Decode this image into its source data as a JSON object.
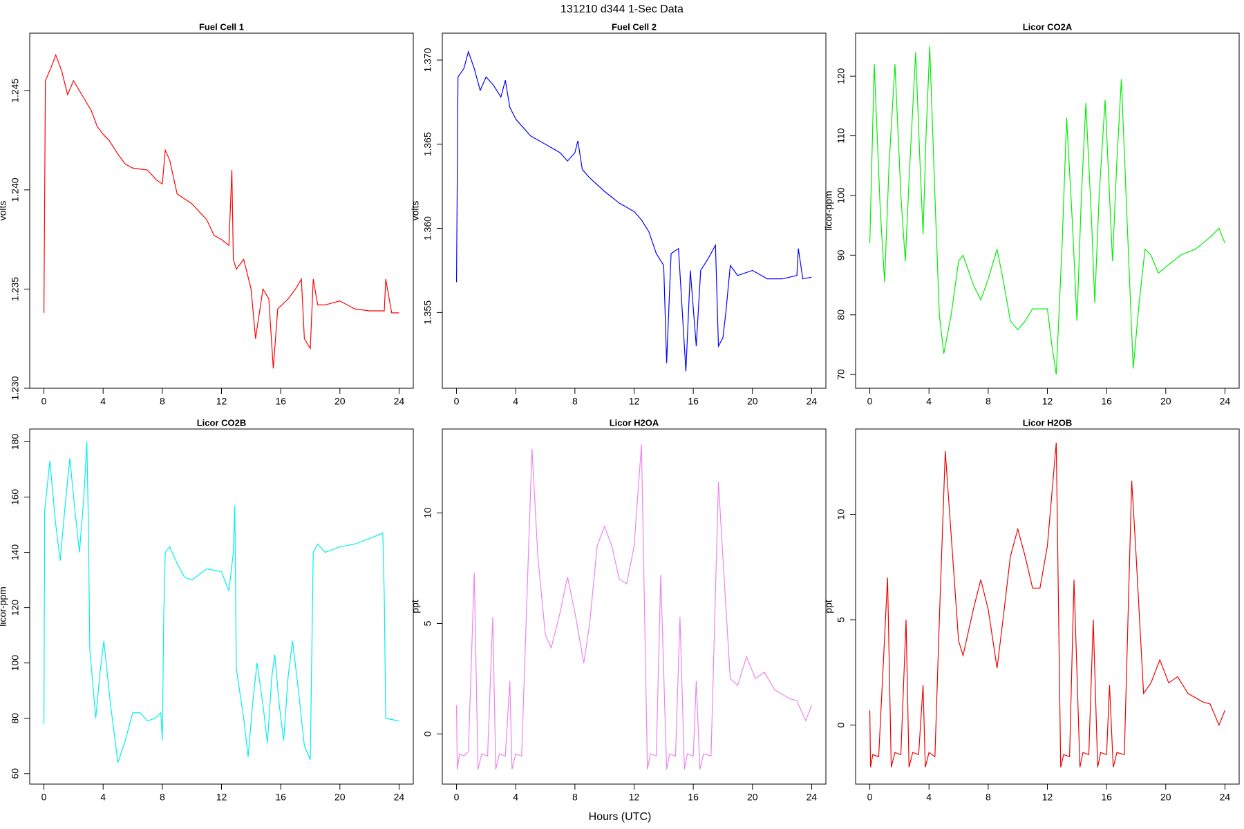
{
  "title": "131210   d344   1-Sec Data",
  "xlabel": "Hours (UTC)",
  "chart_data": [
    {
      "type": "line",
      "title": "Fuel Cell 1",
      "ylabel": "volts",
      "color": "#ff0000",
      "xlim": [
        -0.96,
        24.96
      ],
      "xticks": [
        0,
        4,
        8,
        12,
        16,
        20,
        24
      ],
      "ylim": [
        1.23,
        1.2479
      ],
      "yticks": [
        {
          "value": 1.23,
          "label": "1.230"
        },
        1.235,
        {
          "value": 1.24,
          "label": "1.240"
        },
        1.245
      ],
      "x": [
        0,
        0.1,
        0.5,
        0.8,
        1.2,
        1.6,
        2,
        2.4,
        2.8,
        3.2,
        3.6,
        4,
        4.4,
        5,
        5.5,
        6,
        7,
        7.6,
        8,
        8.2,
        8.5,
        9,
        10,
        11,
        11.5,
        12,
        12.5,
        12.7,
        12.8,
        13,
        13.5,
        14,
        14.3,
        14.8,
        15.2,
        15.5,
        15.8,
        16.5,
        17,
        17.4,
        17.6,
        18,
        18.2,
        18.5,
        19,
        20,
        21,
        22,
        23,
        23.1,
        23.5,
        24
      ],
      "values": [
        1.2338,
        1.2455,
        1.2462,
        1.2468,
        1.246,
        1.2448,
        1.2455,
        1.245,
        1.2445,
        1.244,
        1.2432,
        1.2428,
        1.2425,
        1.2418,
        1.2413,
        1.2411,
        1.241,
        1.2405,
        1.2403,
        1.242,
        1.2415,
        1.2398,
        1.2393,
        1.2385,
        1.2377,
        1.2375,
        1.2372,
        1.241,
        1.2365,
        1.236,
        1.2365,
        1.235,
        1.2325,
        1.235,
        1.2345,
        1.231,
        1.234,
        1.2345,
        1.235,
        1.2355,
        1.2325,
        1.232,
        1.2355,
        1.2342,
        1.2342,
        1.2344,
        1.234,
        1.2339,
        1.2339,
        1.2355,
        1.2338,
        1.2338
      ]
    },
    {
      "type": "line",
      "title": "Fuel Cell 2",
      "ylabel": "volts",
      "color": "#0000ff",
      "xlim": [
        -0.96,
        24.96
      ],
      "xticks": [
        0,
        4,
        8,
        12,
        16,
        20,
        24
      ],
      "ylim": [
        1.3505,
        1.3716
      ],
      "yticks": [
        1.355,
        {
          "value": 1.36,
          "label": "1.360"
        },
        1.365,
        {
          "value": 1.37,
          "label": "1.370"
        }
      ],
      "x": [
        0,
        0.1,
        0.5,
        0.8,
        1.2,
        1.6,
        2,
        2.5,
        3,
        3.3,
        3.6,
        4,
        4.5,
        5,
        6,
        7,
        7.5,
        8,
        8.2,
        8.5,
        9,
        10,
        11,
        12,
        12.5,
        13,
        13.5,
        14,
        14.2,
        14.5,
        15,
        15.5,
        15.8,
        16.2,
        16.5,
        17,
        17.5,
        17.7,
        18,
        18.2,
        18.5,
        19,
        20,
        21,
        22,
        23,
        23.1,
        23.4,
        24
      ],
      "values": [
        1.3568,
        1.369,
        1.3695,
        1.3705,
        1.3695,
        1.3682,
        1.369,
        1.3685,
        1.3678,
        1.3688,
        1.3672,
        1.3665,
        1.366,
        1.3655,
        1.365,
        1.3645,
        1.364,
        1.3645,
        1.3652,
        1.3635,
        1.363,
        1.3622,
        1.3615,
        1.361,
        1.3605,
        1.3598,
        1.3585,
        1.3578,
        1.352,
        1.3585,
        1.3588,
        1.3515,
        1.3575,
        1.353,
        1.3575,
        1.3582,
        1.359,
        1.353,
        1.3535,
        1.355,
        1.3578,
        1.3572,
        1.3575,
        1.357,
        1.357,
        1.3572,
        1.3588,
        1.357,
        1.3571
      ]
    },
    {
      "type": "line",
      "title": "Licor CO2A",
      "ylabel": "licor-ppm",
      "color": "#00ee00",
      "xlim": [
        -0.96,
        24.96
      ],
      "xticks": [
        0,
        4,
        8,
        12,
        16,
        20,
        24
      ],
      "ylim": [
        67.7,
        127.2
      ],
      "yticks": [
        70,
        80,
        90,
        100,
        110,
        120
      ],
      "x": [
        0,
        0.3,
        0.7,
        1,
        1.3,
        1.7,
        2.1,
        2.4,
        2.7,
        3.1,
        3.4,
        3.6,
        3.8,
        4.05,
        4.4,
        4.7,
        5,
        5.5,
        6,
        6.3,
        7,
        7.5,
        8,
        8.6,
        9,
        9.5,
        10,
        10.5,
        11,
        12,
        12.3,
        12.6,
        13,
        13.3,
        13.7,
        14,
        14.3,
        14.6,
        15,
        15.2,
        15.5,
        15.9,
        16.2,
        16.4,
        16.7,
        17,
        17.4,
        17.8,
        18.2,
        18.6,
        19,
        19.5,
        20,
        21,
        22,
        23,
        23.6,
        24
      ],
      "values": [
        92,
        122,
        98,
        85.5,
        105,
        122,
        100,
        89,
        105,
        124,
        105,
        93.5,
        110,
        125,
        100,
        80,
        73.5,
        80,
        89,
        90,
        85,
        82.5,
        86,
        91,
        86,
        79,
        77.5,
        79,
        81,
        81,
        75,
        70,
        92,
        113,
        95,
        79,
        100,
        115.5,
        95,
        82,
        100,
        116,
        100,
        89,
        106,
        119.5,
        95,
        71,
        82,
        91,
        90,
        87,
        88,
        90,
        91,
        93,
        94.5,
        92
      ]
    },
    {
      "type": "line",
      "title": "Licor CO2B",
      "ylabel": "licor-ppm",
      "color": "#00eeee",
      "xlim": [
        -0.96,
        24.96
      ],
      "xticks": [
        0,
        4,
        8,
        12,
        16,
        20,
        24
      ],
      "ylim": [
        56.2,
        184.6
      ],
      "yticks": [
        60,
        80,
        100,
        120,
        140,
        160,
        180
      ],
      "x": [
        0,
        0.05,
        0.4,
        0.8,
        1.1,
        1.4,
        1.75,
        2.1,
        2.4,
        2.7,
        2.9,
        3,
        3.1,
        3.5,
        3.8,
        4.05,
        4.5,
        5,
        5.5,
        6,
        6.5,
        7,
        7.5,
        7.9,
        8,
        8.1,
        8.2,
        8.5,
        9,
        9.5,
        10,
        11,
        12,
        12.5,
        12.8,
        12.9,
        13,
        13.5,
        13.8,
        14.1,
        14.4,
        14.8,
        15.1,
        15.4,
        15.6,
        15.9,
        16.2,
        16.5,
        16.8,
        17.2,
        17.6,
        18,
        18.2,
        18.5,
        19,
        20,
        21,
        22,
        22.9,
        23,
        23.1,
        24
      ],
      "values": [
        78,
        155,
        173,
        150,
        137,
        155,
        174,
        155,
        140,
        160,
        180,
        152,
        105,
        80,
        97,
        108,
        85,
        64,
        72,
        82,
        82,
        79,
        80,
        82,
        72,
        118,
        140,
        142,
        136,
        131,
        130,
        134,
        133,
        126,
        140,
        157,
        98,
        80,
        66,
        85,
        100,
        85,
        71,
        95,
        103,
        85,
        72,
        95,
        108,
        90,
        70,
        65,
        140,
        143,
        140,
        142,
        143,
        145,
        147,
        124,
        80,
        79
      ]
    },
    {
      "type": "line",
      "title": "Licor H2OA",
      "ylabel": "ppt",
      "color": "#ee82ee",
      "xlim": [
        -0.96,
        24.96
      ],
      "xticks": [
        0,
        4,
        8,
        12,
        16,
        20,
        24
      ],
      "ylim": [
        -2.27,
        13.8
      ],
      "yticks": [
        0,
        5,
        10
      ],
      "x": [
        0,
        0.05,
        0.2,
        0.5,
        0.8,
        1.2,
        1.45,
        1.7,
        2.1,
        2.45,
        2.65,
        2.9,
        3.3,
        3.6,
        3.75,
        4,
        4.4,
        4.7,
        5.1,
        5.5,
        6,
        6.4,
        7,
        7.5,
        8,
        8.6,
        9,
        9.5,
        10,
        10.5,
        11,
        11.5,
        12,
        12.5,
        12.9,
        13.1,
        13.5,
        13.8,
        14.2,
        14.4,
        14.8,
        15.1,
        15.4,
        15.6,
        16,
        16.2,
        16.45,
        16.7,
        17.2,
        17.7,
        18,
        18.5,
        19,
        19.6,
        20.2,
        20.8,
        21.5,
        22.5,
        23,
        23.6,
        24
      ],
      "values": [
        1.3,
        -1.6,
        -0.9,
        -1,
        -0.8,
        7.3,
        -1.6,
        -0.9,
        -1,
        5.3,
        -1.6,
        -0.9,
        -1,
        2.4,
        -1.6,
        -0.9,
        -1,
        5,
        12.9,
        8,
        4.5,
        3.9,
        5.5,
        7.1,
        5.5,
        3.2,
        5,
        8.5,
        9.4,
        8.5,
        7,
        6.8,
        8.5,
        13.1,
        -1.6,
        -0.9,
        -1,
        7.2,
        -1.6,
        -0.9,
        -1,
        5.3,
        -1.6,
        -0.9,
        -1,
        2.4,
        -1.6,
        -0.9,
        -1,
        11.4,
        8,
        2.5,
        2.2,
        3.5,
        2.5,
        2.8,
        2,
        1.6,
        1.5,
        0.6,
        1.3
      ]
    },
    {
      "type": "line",
      "title": "Licor H2OB",
      "ylabel": "ppt",
      "color": "#ee0000",
      "xlim": [
        -0.96,
        24.96
      ],
      "xticks": [
        0,
        4,
        8,
        12,
        16,
        20,
        24
      ],
      "ylim": [
        -2.8,
        14.05
      ],
      "yticks": [
        0,
        5,
        10
      ],
      "x": [
        0,
        0.05,
        0.2,
        0.6,
        1.2,
        1.45,
        1.7,
        2.1,
        2.45,
        2.65,
        2.9,
        3.3,
        3.6,
        3.75,
        4,
        4.4,
        4.7,
        5.1,
        5.5,
        6,
        6.3,
        7,
        7.5,
        8,
        8.6,
        9,
        9.5,
        10,
        10.5,
        11,
        11.5,
        12,
        12.6,
        12.9,
        13.1,
        13.5,
        13.8,
        14.2,
        14.4,
        14.8,
        15.1,
        15.4,
        15.6,
        16,
        16.2,
        16.45,
        16.7,
        17.2,
        17.7,
        18,
        18.5,
        19,
        19.6,
        20.2,
        20.8,
        21.5,
        22.5,
        23,
        23.6,
        24
      ],
      "values": [
        0.7,
        -2,
        -1.4,
        -1.5,
        7,
        -2,
        -1.3,
        -1.4,
        5,
        -2,
        -1.3,
        -1.4,
        1.9,
        -2,
        -1.3,
        -1.5,
        5,
        13,
        9,
        4,
        3.3,
        5.5,
        6.9,
        5.5,
        2.7,
        5,
        8,
        9.3,
        8,
        6.5,
        6.5,
        8.5,
        13.4,
        -2,
        -1.4,
        -1.5,
        6.9,
        -2,
        -1.3,
        -1.4,
        5,
        -2,
        -1.3,
        -1.4,
        1.9,
        -2,
        -1.3,
        -1.4,
        11.6,
        8,
        1.5,
        2,
        3.1,
        2,
        2.3,
        1.5,
        1.1,
        1,
        0,
        0.7
      ]
    }
  ]
}
